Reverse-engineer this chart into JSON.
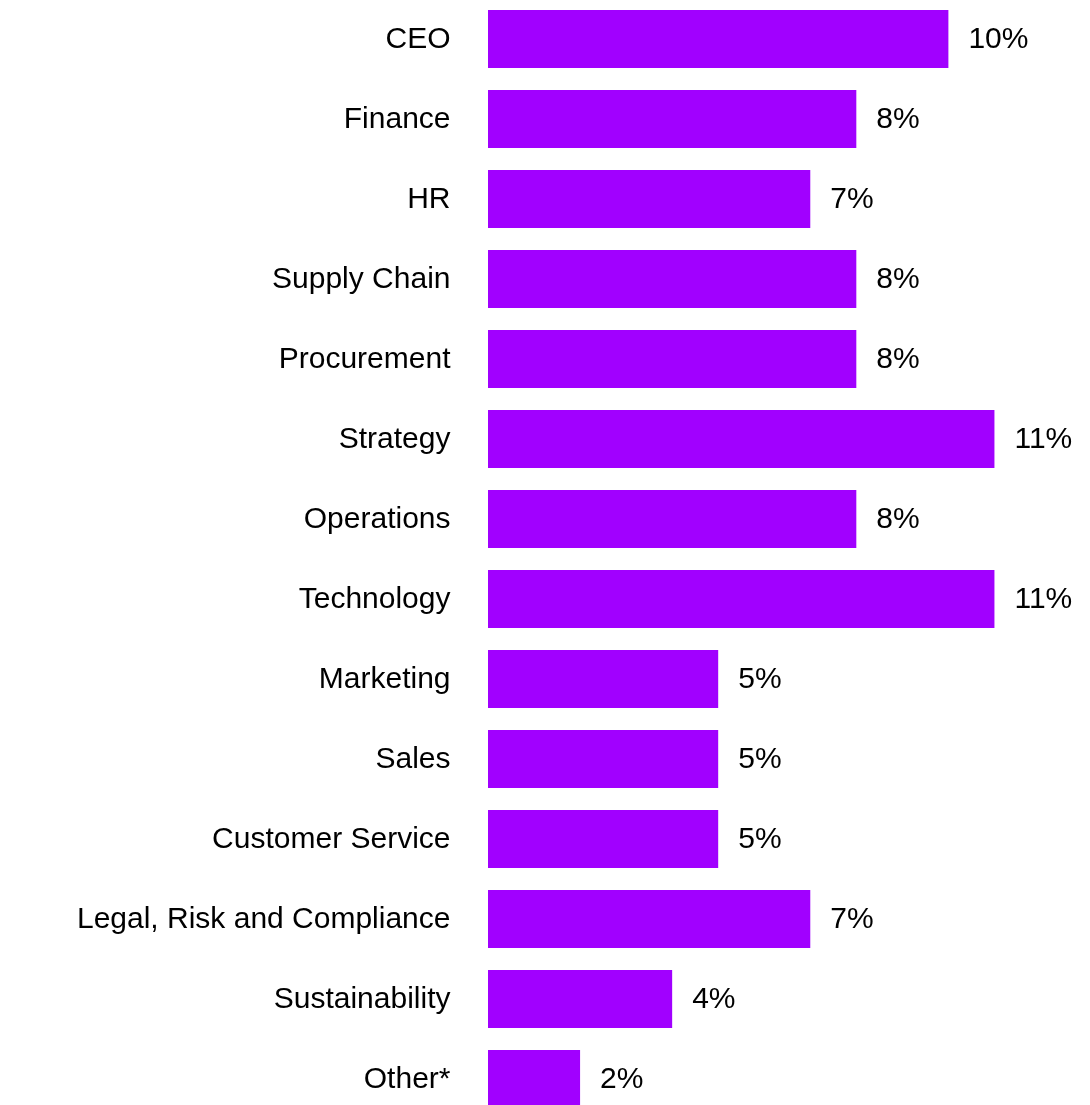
{
  "chart_data": {
    "type": "bar",
    "orientation": "horizontal",
    "color": "#a100ff",
    "categories": [
      "CEO",
      "Finance",
      "HR",
      "Supply Chain",
      "Procurement",
      "Strategy",
      "Operations",
      "Technology",
      "Marketing",
      "Sales",
      "Customer Service",
      "Legal, Risk and Compliance",
      "Sustainability",
      "Other*"
    ],
    "values": [
      10,
      8,
      7,
      8,
      8,
      11,
      8,
      11,
      5,
      5,
      5,
      7,
      4,
      2
    ],
    "value_labels": [
      "10%",
      "8%",
      "7%",
      "8%",
      "8%",
      "11%",
      "8%",
      "11%",
      "5%",
      "5%",
      "5%",
      "7%",
      "4%",
      "2%"
    ],
    "grid": false
  }
}
